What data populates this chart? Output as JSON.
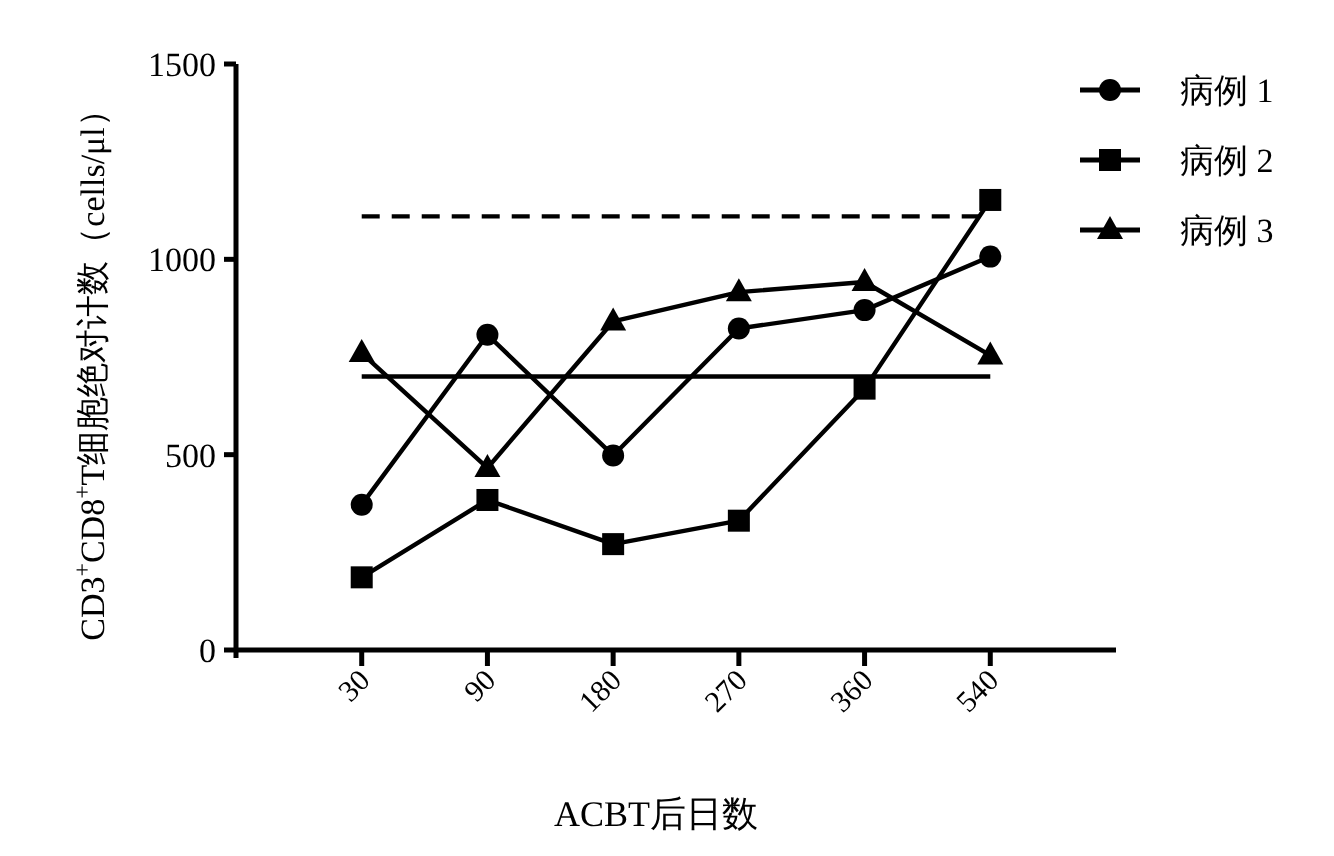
{
  "chart_data": {
    "type": "line",
    "xlabel": "ACBT后日数",
    "ylabel": "CD3$^{+}$CD8$^{+}$T细胞绝对计数（cells/μl）",
    "categories": [
      "30",
      "90",
      "180",
      "270",
      "360",
      "540"
    ],
    "ylim": [
      0,
      1500
    ],
    "yticks": [
      0,
      500,
      1000,
      1500
    ],
    "grid": false,
    "legend": "top right",
    "line_style": "solid",
    "series": [
      {
        "name": "病例 1",
        "color": "#000000",
        "marker": "circle",
        "values": [
          372,
          807,
          498,
          823,
          870,
          1007
        ]
      },
      {
        "name": "病例 2",
        "color": "#000000",
        "marker": "square",
        "values": [
          186,
          384,
          271,
          331,
          669,
          1152
        ]
      },
      {
        "name": "病例 3",
        "color": "#000000",
        "marker": "triangle",
        "values": [
          760,
          466,
          841,
          916,
          942,
          754
        ]
      }
    ],
    "ref_lines": [
      {
        "axis": "y",
        "value": 1110,
        "color": "#000000",
        "line_style": "dashed"
      },
      {
        "axis": "y",
        "value": 700,
        "color": "#000000",
        "line_style": "solid"
      }
    ]
  }
}
